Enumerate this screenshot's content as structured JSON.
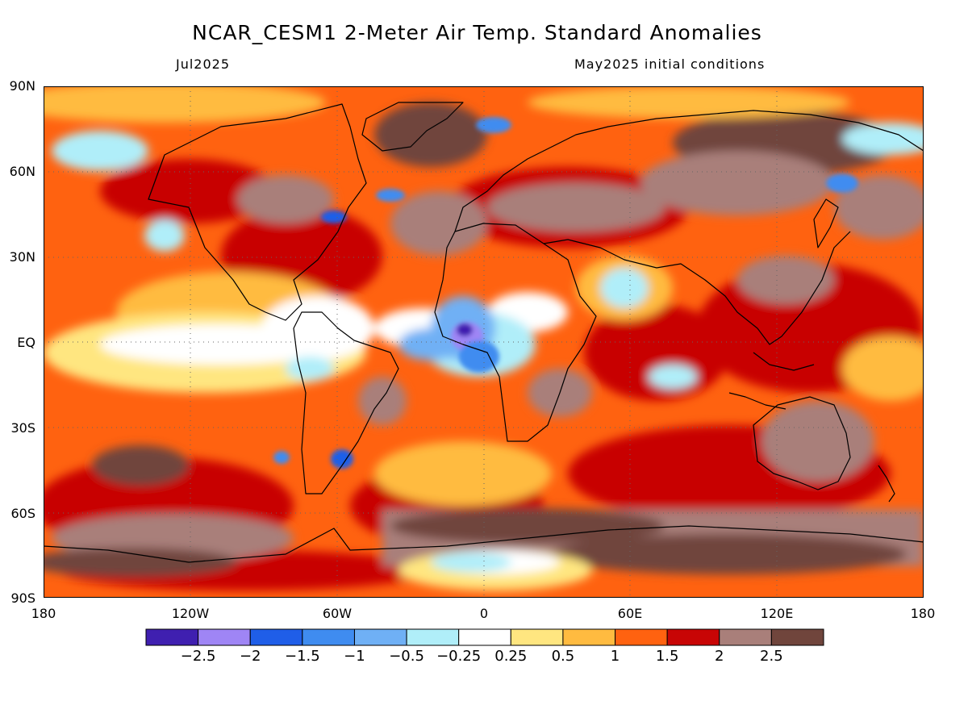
{
  "title": "NCAR_CESM1 2-Meter Air Temp. Standard Anomalies",
  "valid_month": "Jul2025",
  "initial_conditions": "May2025 initial conditions",
  "lat_labels": [
    "90N",
    "60N",
    "30N",
    "EQ",
    "30S",
    "60S",
    "90S"
  ],
  "lon_labels": [
    "180",
    "120W",
    "60W",
    "0",
    "60E",
    "120E",
    "180"
  ],
  "colorbar": {
    "colors": [
      "#3f1fb0",
      "#9f85f5",
      "#1f5ee8",
      "#3f8cf0",
      "#6fb0f5",
      "#b0eef9",
      "#ffffff",
      "#ffe680",
      "#ffbb40",
      "#ff6210",
      "#c80505",
      "#a97f7a",
      "#70453c"
    ],
    "labels": [
      "−2.5",
      "−2",
      "−1.5",
      "−1",
      "−0.5",
      "−0.25",
      "0.25",
      "0.5",
      "1",
      "1.5",
      "2",
      "2.5"
    ]
  }
}
